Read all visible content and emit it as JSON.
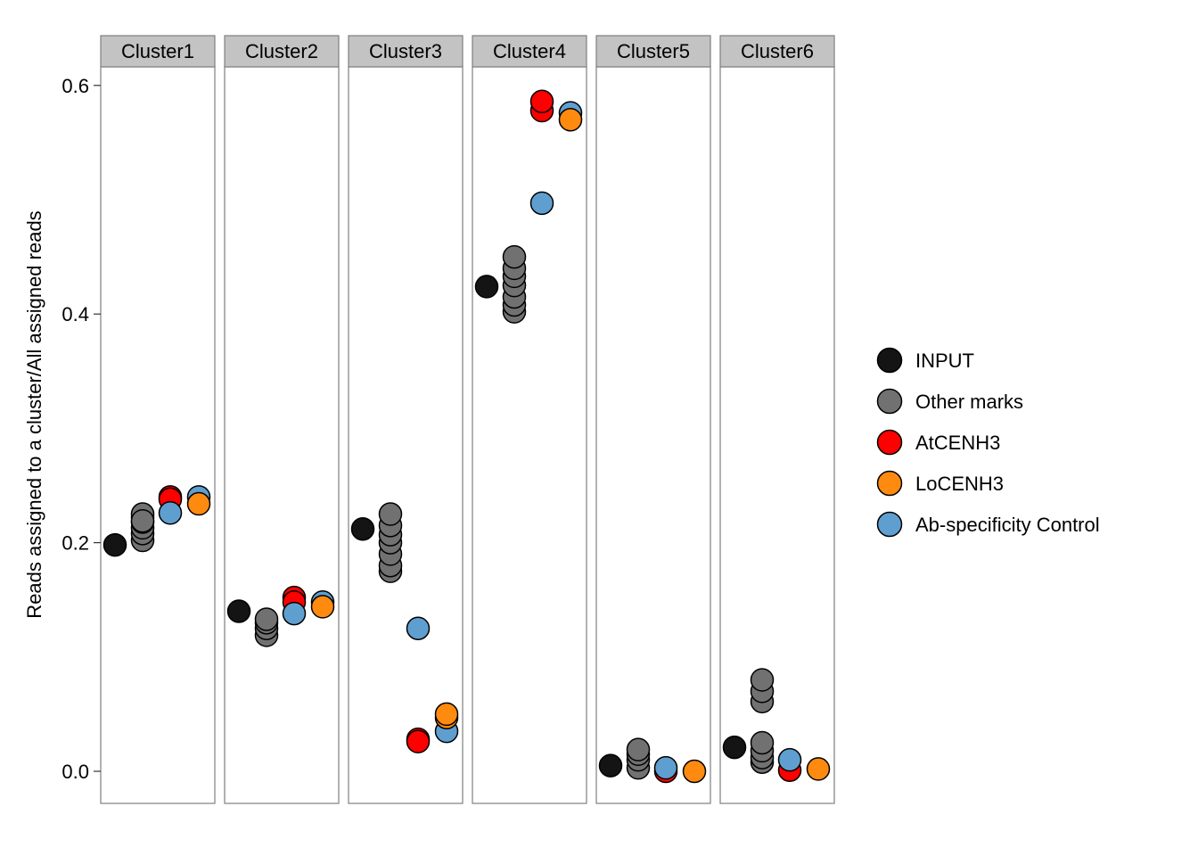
{
  "chart_data": {
    "type": "scatter",
    "xlabel": "",
    "ylabel": "Reads assigned to a cluster/All assigned reads",
    "ylim": [
      -0.04,
      0.63
    ],
    "y_ticks": [
      0.0,
      0.2,
      0.4,
      0.6
    ],
    "y_tick_labels": [
      "0.0",
      "0.2",
      "0.4",
      "0.6"
    ],
    "grid": false,
    "legend_position": "right",
    "legend": [
      {
        "name": "INPUT",
        "color": "#141414"
      },
      {
        "name": "Other marks",
        "color": "#717171"
      },
      {
        "name": "AtCENH3",
        "color": "#ff0000"
      },
      {
        "name": "LoCENH3",
        "color": "#ff8a10"
      },
      {
        "name": "Ab-specificity Control",
        "color": "#5f9fd0"
      }
    ],
    "panels": [
      {
        "label": "Cluster1",
        "series": [
          {
            "name": "INPUT",
            "values": [
              0.198
            ]
          },
          {
            "name": "Other marks",
            "values": [
              0.202,
              0.208,
              0.213,
              0.218,
              0.222,
              0.225,
              0.219
            ]
          },
          {
            "name": "AtCENH3",
            "values": [
              0.24,
              0.238
            ]
          },
          {
            "name": "LoCENH3",
            "values": [
              0.234
            ]
          },
          {
            "name": "Ab-specificity Control",
            "values": [
              0.226,
              0.24
            ]
          }
        ]
      },
      {
        "label": "Cluster2",
        "series": [
          {
            "name": "INPUT",
            "values": [
              0.14
            ]
          },
          {
            "name": "Other marks",
            "values": [
              0.119,
              0.125,
              0.13,
              0.133
            ]
          },
          {
            "name": "AtCENH3",
            "values": [
              0.152,
              0.148
            ]
          },
          {
            "name": "LoCENH3",
            "values": [
              0.144
            ]
          },
          {
            "name": "Ab-specificity Control",
            "values": [
              0.138,
              0.148
            ]
          }
        ]
      },
      {
        "label": "Cluster3",
        "series": [
          {
            "name": "INPUT",
            "values": [
              0.212
            ]
          },
          {
            "name": "Other marks",
            "values": [
              0.175,
              0.18,
              0.19,
              0.2,
              0.207,
              0.215,
              0.225
            ]
          },
          {
            "name": "AtCENH3",
            "values": [
              0.028,
              0.026
            ]
          },
          {
            "name": "LoCENH3",
            "values": [
              0.047,
              0.05
            ]
          },
          {
            "name": "Ab-specificity Control",
            "values": [
              0.125,
              0.035
            ]
          }
        ]
      },
      {
        "label": "Cluster4",
        "series": [
          {
            "name": "INPUT",
            "values": [
              0.424
            ]
          },
          {
            "name": "Other marks",
            "values": [
              0.402,
              0.408,
              0.415,
              0.425,
              0.433,
              0.44,
              0.45
            ]
          },
          {
            "name": "AtCENH3",
            "values": [
              0.578,
              0.586
            ]
          },
          {
            "name": "LoCENH3",
            "values": [
              0.57
            ]
          },
          {
            "name": "Ab-specificity Control",
            "values": [
              0.497,
              0.576
            ]
          }
        ]
      },
      {
        "label": "Cluster5",
        "series": [
          {
            "name": "INPUT",
            "values": [
              0.005
            ]
          },
          {
            "name": "Other marks",
            "values": [
              0.003,
              0.01,
              0.015,
              0.019
            ]
          },
          {
            "name": "AtCENH3",
            "values": [
              0.0
            ]
          },
          {
            "name": "LoCENH3",
            "values": [
              0.0
            ]
          },
          {
            "name": "Ab-specificity Control",
            "values": [
              0.003
            ]
          }
        ]
      },
      {
        "label": "Cluster6",
        "series": [
          {
            "name": "INPUT",
            "values": [
              0.021
            ]
          },
          {
            "name": "Other marks",
            "values": [
              0.008,
              0.012,
              0.018,
              0.025,
              0.061,
              0.07,
              0.08
            ]
          },
          {
            "name": "AtCENH3",
            "values": [
              0.001
            ]
          },
          {
            "name": "LoCENH3",
            "values": [
              0.002
            ]
          },
          {
            "name": "Ab-specificity Control",
            "values": [
              0.01
            ]
          }
        ]
      }
    ]
  }
}
